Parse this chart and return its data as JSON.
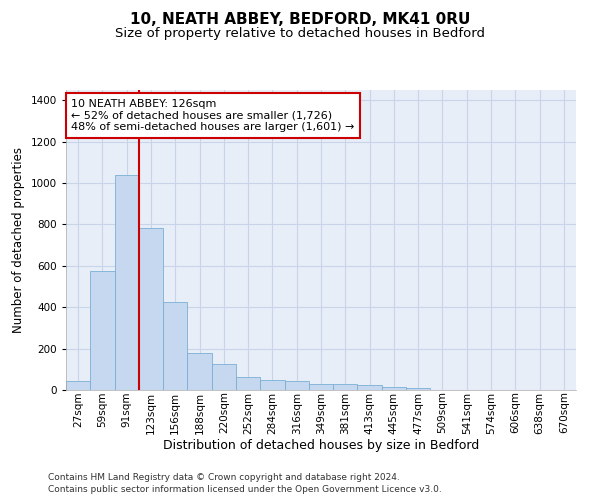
{
  "title1": "10, NEATH ABBEY, BEDFORD, MK41 0RU",
  "title2": "Size of property relative to detached houses in Bedford",
  "xlabel": "Distribution of detached houses by size in Bedford",
  "ylabel": "Number of detached properties",
  "categories": [
    "27sqm",
    "59sqm",
    "91sqm",
    "123sqm",
    "156sqm",
    "188sqm",
    "220sqm",
    "252sqm",
    "284sqm",
    "316sqm",
    "349sqm",
    "381sqm",
    "413sqm",
    "445sqm",
    "477sqm",
    "509sqm",
    "541sqm",
    "574sqm",
    "606sqm",
    "638sqm",
    "670sqm"
  ],
  "values": [
    45,
    575,
    1040,
    785,
    425,
    180,
    128,
    62,
    50,
    45,
    30,
    28,
    22,
    15,
    12,
    0,
    0,
    0,
    0,
    0,
    0
  ],
  "bar_color": "#c5d8ef",
  "bar_edge_color": "#7aafd4",
  "vline_x": 2.5,
  "vline_color": "#cc0000",
  "annotation_text": "10 NEATH ABBEY: 126sqm\n← 52% of detached houses are smaller (1,726)\n48% of semi-detached houses are larger (1,601) →",
  "annotation_box_color": "white",
  "annotation_box_edge_color": "#cc0000",
  "ylim": [
    0,
    1450
  ],
  "yticks": [
    0,
    200,
    400,
    600,
    800,
    1000,
    1200,
    1400
  ],
  "grid_color": "#c8d4e8",
  "background_color": "#e8eef8",
  "footer1": "Contains HM Land Registry data © Crown copyright and database right 2024.",
  "footer2": "Contains public sector information licensed under the Open Government Licence v3.0.",
  "title1_fontsize": 11,
  "title2_fontsize": 9.5,
  "xlabel_fontsize": 9,
  "ylabel_fontsize": 8.5,
  "tick_fontsize": 7.5,
  "annotation_fontsize": 8,
  "footer_fontsize": 6.5
}
